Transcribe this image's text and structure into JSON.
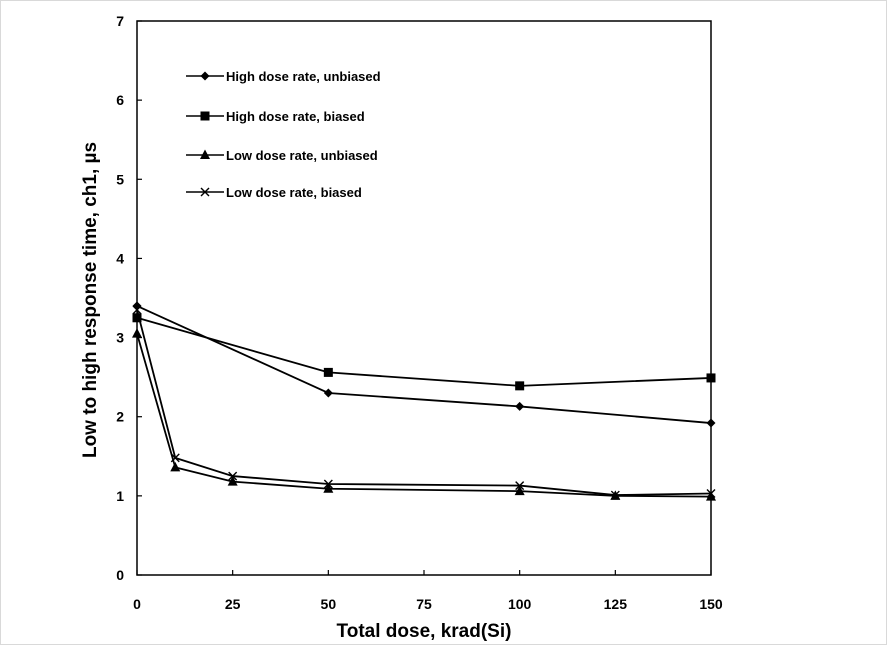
{
  "chart_data": {
    "type": "line",
    "title": "",
    "xlabel": "Total dose, krad(Si)",
    "ylabel": "Low to high response time, ch1, µs",
    "xlim": [
      0,
      150
    ],
    "ylim": [
      0,
      7
    ],
    "xticks": [
      0,
      25,
      50,
      75,
      100,
      125,
      150
    ],
    "yticks": [
      0,
      1,
      2,
      3,
      4,
      5,
      6,
      7
    ],
    "grid": false,
    "legend_position": "top-left",
    "series": [
      {
        "name": "High dose rate, unbiased",
        "marker": "diamond",
        "x": [
          0,
          50,
          100,
          150
        ],
        "y": [
          3.4,
          2.3,
          2.13,
          1.92
        ]
      },
      {
        "name": "High dose rate, biased",
        "marker": "square",
        "x": [
          0,
          50,
          100,
          150
        ],
        "y": [
          3.25,
          2.56,
          2.39,
          2.49
        ]
      },
      {
        "name": "Low dose rate, unbiased",
        "marker": "triangle",
        "x": [
          0,
          10,
          25,
          50,
          100,
          125,
          150
        ],
        "y": [
          3.05,
          1.36,
          1.18,
          1.09,
          1.06,
          1.0,
          0.99
        ]
      },
      {
        "name": "Low dose rate, biased",
        "marker": "x",
        "x": [
          0,
          10,
          25,
          50,
          100,
          125,
          150
        ],
        "y": [
          3.35,
          1.48,
          1.25,
          1.15,
          1.13,
          1.01,
          1.03
        ]
      }
    ]
  }
}
